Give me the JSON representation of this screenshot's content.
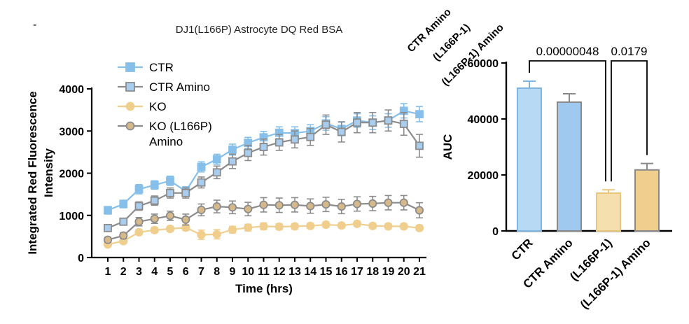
{
  "stray_mark": "-",
  "clipped_labels": [
    "CTR Amino",
    "(L166P-1)",
    "(L166P-1) Amino"
  ],
  "chart_data": [
    {
      "type": "line",
      "title": "DJ1(L166P) Astrocyte DQ Red BSA",
      "xlabel": "Time (hrs)",
      "ylabel": "Integrated Red Fluorescence Intensity",
      "ylabel_lines": [
        "Integrated Red Fluorescence",
        "Intensity"
      ],
      "xlim": [
        1,
        21
      ],
      "ylim": [
        0,
        4000
      ],
      "yticks": [
        0,
        1000,
        2000,
        3000,
        4000
      ],
      "x": [
        1,
        2,
        3,
        4,
        5,
        6,
        7,
        8,
        9,
        10,
        11,
        12,
        13,
        14,
        15,
        16,
        17,
        18,
        19,
        20,
        21
      ],
      "series": [
        {
          "name": "CTR",
          "legend_lines": [
            "CTR"
          ],
          "color": "#86c0ea",
          "marker_fill": "#86c0ea",
          "marker": "square",
          "values": [
            1120,
            1270,
            1620,
            1720,
            1820,
            1570,
            2150,
            2330,
            2560,
            2720,
            2850,
            2960,
            2950,
            3000,
            3180,
            3050,
            3250,
            3200,
            3250,
            3480,
            3400
          ],
          "errors": [
            90,
            90,
            110,
            100,
            110,
            110,
            120,
            120,
            130,
            130,
            140,
            140,
            150,
            150,
            160,
            160,
            160,
            160,
            160,
            170,
            180
          ]
        },
        {
          "name": "CTR Amino",
          "legend_lines": [
            "CTR Amino"
          ],
          "color": "#8c8c8c",
          "marker_fill": "#a9cdee",
          "marker": "square",
          "values": [
            700,
            850,
            1220,
            1350,
            1530,
            1530,
            1780,
            2020,
            2280,
            2480,
            2620,
            2730,
            2800,
            2860,
            3150,
            2980,
            3200,
            3200,
            3250,
            3170,
            2650
          ],
          "errors": [
            70,
            80,
            100,
            110,
            120,
            120,
            130,
            150,
            170,
            180,
            190,
            190,
            200,
            200,
            230,
            240,
            240,
            240,
            250,
            270,
            270
          ]
        },
        {
          "name": "KO",
          "legend_lines": [
            "KO"
          ],
          "color": "#f0cf8e",
          "marker_fill": "#f0cf8e",
          "marker": "circle",
          "values": [
            310,
            390,
            600,
            650,
            680,
            710,
            540,
            550,
            660,
            710,
            740,
            730,
            740,
            750,
            780,
            760,
            800,
            750,
            740,
            740,
            700
          ],
          "errors": [
            40,
            50,
            60,
            60,
            60,
            70,
            110,
            110,
            80,
            80,
            80,
            70,
            60,
            60,
            60,
            60,
            60,
            60,
            60,
            60,
            60
          ]
        },
        {
          "name": "KO (L166P) Amino",
          "legend_lines": [
            "KO (L166P)",
            "Amino"
          ],
          "color": "#8c8c8c",
          "marker_fill": "#d6b98b",
          "marker": "circle",
          "values": [
            420,
            520,
            850,
            920,
            990,
            900,
            1130,
            1210,
            1190,
            1150,
            1250,
            1240,
            1250,
            1220,
            1260,
            1210,
            1270,
            1280,
            1300,
            1300,
            1120
          ],
          "errors": [
            60,
            70,
            100,
            110,
            110,
            130,
            140,
            150,
            150,
            160,
            170,
            170,
            170,
            170,
            170,
            170,
            170,
            170,
            170,
            170,
            180
          ]
        }
      ]
    },
    {
      "type": "bar",
      "title": "",
      "ylabel": "AUC",
      "ylim": [
        0,
        60000
      ],
      "yticks": [
        0,
        20000,
        40000,
        60000
      ],
      "categories": [
        "CTR",
        "CTR Amino",
        "(L166P-1)",
        "(L166P-1) Amino"
      ],
      "values": [
        51000,
        46000,
        13500,
        21800
      ],
      "errors": [
        2500,
        3000,
        1200,
        2300
      ],
      "fill_colors": [
        "#b8d9f3",
        "#9fc9ee",
        "#f5dfae",
        "#f0cf8e"
      ],
      "edge_colors": [
        "#7db6e3",
        "#8a8a8a",
        "#e8c77d",
        "#8a8a8a"
      ],
      "annotations": [
        {
          "text": "0.00000048",
          "from": 0,
          "to": 2
        },
        {
          "text": "0.0179",
          "from": 2,
          "to": 3
        }
      ]
    }
  ]
}
